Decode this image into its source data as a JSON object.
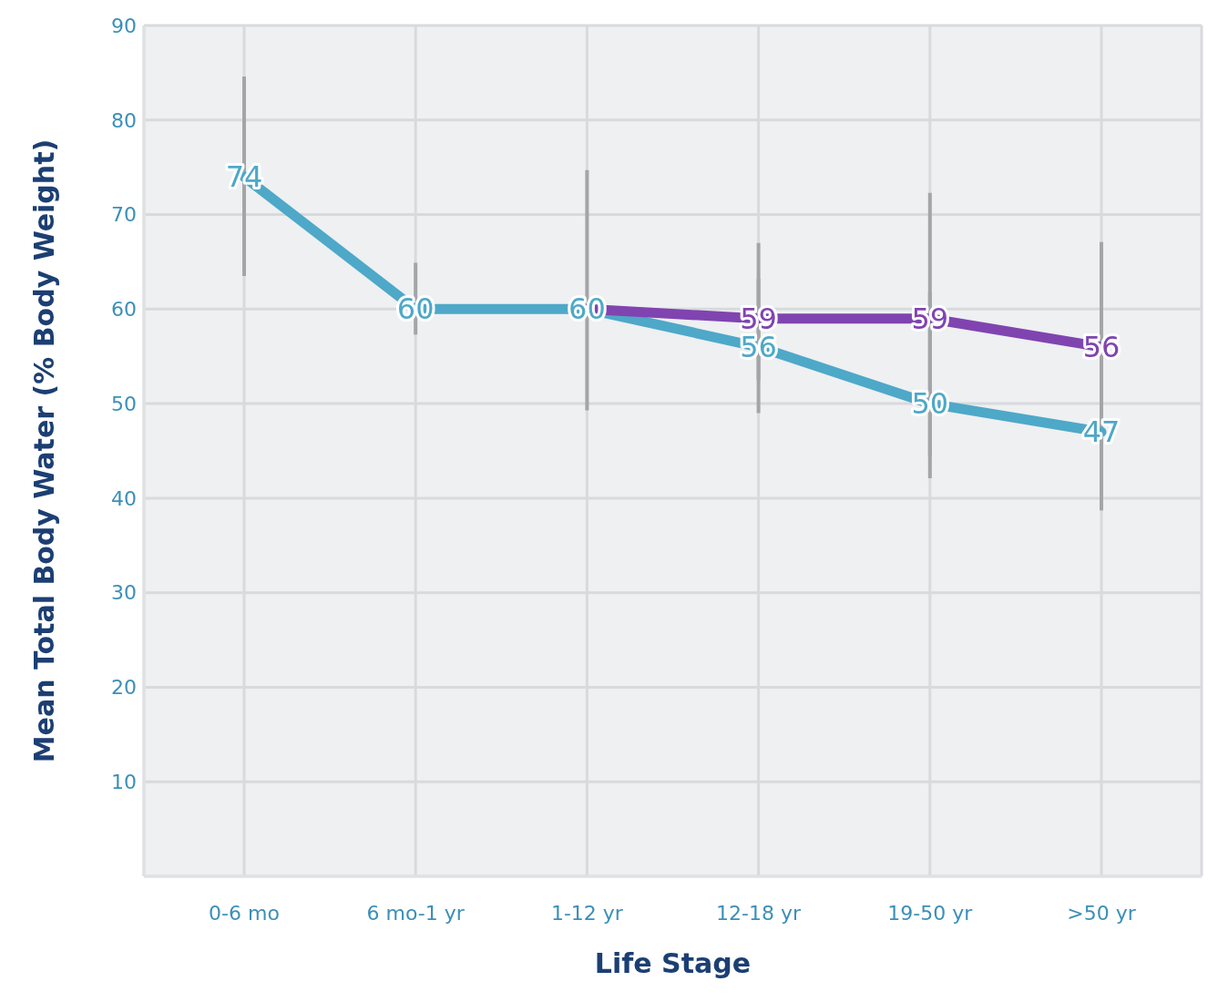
{
  "chart_data": {
    "type": "line",
    "xlabel": "Life Stage",
    "ylabel": "Mean Total Body Water (% Body Weight)",
    "categories": [
      "0-6 mo",
      "6 mo-1 yr",
      "1-12 yr",
      "12-18 yr",
      "19-50 yr",
      ">50 yr"
    ],
    "series": [
      {
        "color": "#4ea8c8",
        "values": [
          74,
          60,
          60,
          56,
          50,
          47
        ],
        "value_labels": [
          "74",
          "60",
          "60",
          "56",
          "50",
          "47"
        ],
        "errors": [
          [
            63.5,
            84.6
          ],
          [
            57.3,
            64.9
          ],
          [
            49.3,
            74.7
          ],
          [
            49,
            63.2
          ],
          [
            42.1,
            61.8
          ],
          [
            38.7,
            58.8
          ]
        ]
      },
      {
        "color": "#8044b0",
        "values": [
          null,
          null,
          60,
          59,
          59,
          56
        ],
        "value_labels": [
          null,
          null,
          null,
          "59",
          "59",
          "56"
        ],
        "errors": [
          null,
          null,
          null,
          [
            52.5,
            67
          ],
          [
            44.4,
            72.3
          ],
          [
            48,
            67.1
          ]
        ]
      }
    ],
    "ylim": [
      0,
      90
    ],
    "yticks": [
      10,
      20,
      30,
      40,
      50,
      60,
      70,
      80,
      90
    ],
    "grid": true
  }
}
